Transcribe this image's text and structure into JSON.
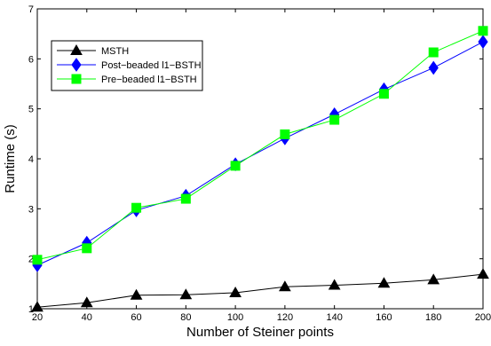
{
  "chart_data": {
    "type": "line",
    "title": "",
    "xlabel": "Number of Steiner points",
    "ylabel": "Runtime (s)",
    "xlim": [
      20,
      200
    ],
    "ylim": [
      1,
      7
    ],
    "xticks": [
      20,
      40,
      60,
      80,
      100,
      120,
      140,
      160,
      180,
      200
    ],
    "yticks": [
      1,
      2,
      3,
      4,
      5,
      6,
      7
    ],
    "grid": false,
    "legend_position": "top-left",
    "x": [
      20,
      40,
      60,
      80,
      100,
      120,
      140,
      160,
      180,
      200
    ],
    "series": [
      {
        "name": "MSTH",
        "color": "#000000",
        "marker": "triangle",
        "values": [
          1.03,
          1.12,
          1.27,
          1.28,
          1.32,
          1.44,
          1.47,
          1.51,
          1.58,
          1.69
        ]
      },
      {
        "name": "Post−beaded l1−BSTH",
        "color": "#0000ff",
        "marker": "diamond",
        "values": [
          1.87,
          2.32,
          2.97,
          3.26,
          3.89,
          4.41,
          4.89,
          5.39,
          5.82,
          6.34
        ]
      },
      {
        "name": "Pre−beaded l1−BSTH",
        "color": "#00ff00",
        "marker": "square",
        "values": [
          1.98,
          2.21,
          3.02,
          3.2,
          3.86,
          4.49,
          4.78,
          5.3,
          6.13,
          6.56
        ]
      }
    ]
  }
}
